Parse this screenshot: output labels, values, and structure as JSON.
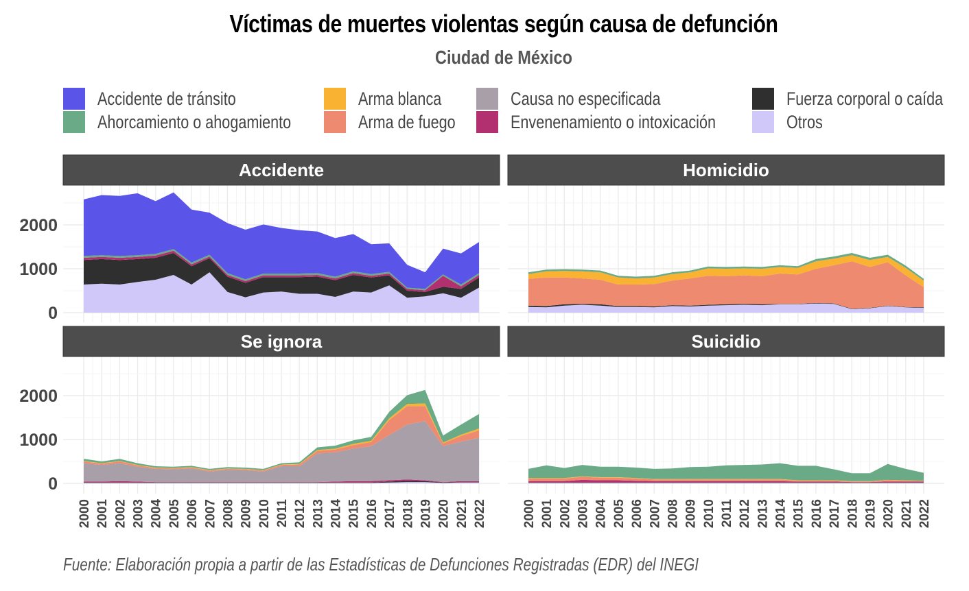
{
  "title": "Víctimas de muertes violentas según causa de defunción",
  "subtitle": "Ciudad de México",
  "caption": "Fuente: Elaboración propia a partir de las Estadísticas de Defunciones Registradas (EDR) del INEGI",
  "legend": [
    {
      "label": "Accidente de tránsito",
      "color": "#5A55E8"
    },
    {
      "label": "Ahorcamiento o ahogamiento",
      "color": "#6AAA86"
    },
    {
      "label": "Arma blanca",
      "color": "#F9B232"
    },
    {
      "label": "Arma de fuego",
      "color": "#EE8A70"
    },
    {
      "label": "Causa no especificada",
      "color": "#A99FA8"
    },
    {
      "label": "Envenenamiento o intoxicación",
      "color": "#B2306F"
    },
    {
      "label": "Fuerza corporal o caída",
      "color": "#2F2F2F"
    },
    {
      "label": "Otros",
      "color": "#D1C8FA"
    }
  ],
  "chart_data": {
    "type": "area",
    "stacked": true,
    "title": "Víctimas de muertes violentas según causa de defunción",
    "subtitle": "Ciudad de México",
    "xlabel": "",
    "ylabel": "",
    "x": [
      "2000",
      "2001",
      "2002",
      "2003",
      "2004",
      "2005",
      "2006",
      "2007",
      "2008",
      "2009",
      "2010",
      "2011",
      "2012",
      "2013",
      "2014",
      "2015",
      "2016",
      "2017",
      "2018",
      "2019",
      "2020",
      "2021",
      "2022"
    ],
    "ylim": [
      0,
      2900
    ],
    "yticks": [
      "0",
      "1000",
      "2000"
    ],
    "grid": true,
    "legend_position": "top",
    "stack_order_bottom_to_top": [
      "Otros",
      "Fuerza corporal o caída",
      "Envenenamiento o intoxicación",
      "Causa no especificada",
      "Arma de fuego",
      "Arma blanca",
      "Ahorcamiento o ahogamiento",
      "Accidente de tránsito"
    ],
    "panels": [
      {
        "name": "Accidente",
        "series": [
          {
            "name": "Otros",
            "values": [
              640,
              660,
              640,
              700,
              750,
              860,
              640,
              920,
              470,
              350,
              460,
              480,
              430,
              430,
              360,
              480,
              460,
              620,
              340,
              370,
              440,
              340,
              570
            ]
          },
          {
            "name": "Fuerza corporal o caída",
            "values": [
              560,
              560,
              560,
              520,
              500,
              500,
              420,
              320,
              350,
              330,
              350,
              330,
              380,
              390,
              380,
              380,
              340,
              230,
              160,
              100,
              150,
              200,
              230
            ]
          },
          {
            "name": "Envenenamiento o intoxicación",
            "values": [
              50,
              50,
              50,
              50,
              50,
              50,
              40,
              40,
              40,
              40,
              40,
              40,
              40,
              40,
              40,
              40,
              40,
              40,
              40,
              40,
              250,
              60,
              60
            ]
          },
          {
            "name": "Causa no especificada",
            "values": [
              0,
              0,
              0,
              0,
              0,
              0,
              0,
              0,
              0,
              0,
              0,
              0,
              0,
              0,
              0,
              0,
              0,
              0,
              0,
              0,
              0,
              0,
              0
            ]
          },
          {
            "name": "Arma de fuego",
            "values": [
              0,
              0,
              0,
              0,
              0,
              0,
              0,
              0,
              0,
              0,
              0,
              0,
              0,
              0,
              0,
              0,
              0,
              0,
              0,
              0,
              0,
              0,
              0
            ]
          },
          {
            "name": "Arma blanca",
            "values": [
              0,
              0,
              0,
              0,
              0,
              0,
              0,
              0,
              0,
              0,
              0,
              0,
              0,
              0,
              0,
              0,
              0,
              0,
              0,
              0,
              0,
              0,
              0
            ]
          },
          {
            "name": "Ahorcamiento o ahogamiento",
            "values": [
              40,
              40,
              40,
              40,
              40,
              40,
              40,
              40,
              40,
              40,
              40,
              40,
              40,
              40,
              40,
              40,
              40,
              40,
              30,
              30,
              30,
              40,
              40
            ]
          },
          {
            "name": "Accidente de tránsito",
            "values": [
              1290,
              1370,
              1370,
              1410,
              1200,
              1290,
              1210,
              960,
              1140,
              1130,
              1120,
              1040,
              990,
              950,
              880,
              850,
              680,
              650,
              520,
              380,
              590,
              710,
              710
            ]
          }
        ]
      },
      {
        "name": "Homicidio",
        "series": [
          {
            "name": "Otros",
            "values": [
              130,
              120,
              160,
              180,
              160,
              130,
              130,
              120,
              150,
              140,
              160,
              170,
              180,
              170,
              190,
              190,
              210,
              200,
              80,
              100,
              150,
              120,
              110
            ]
          },
          {
            "name": "Fuerza corporal o caída",
            "values": [
              30,
              30,
              30,
              20,
              30,
              20,
              20,
              20,
              20,
              20,
              20,
              20,
              20,
              20,
              10,
              10,
              10,
              10,
              10,
              10,
              10,
              10,
              10
            ]
          },
          {
            "name": "Envenenamiento o intoxicación",
            "values": [
              0,
              0,
              0,
              0,
              0,
              0,
              0,
              0,
              0,
              0,
              0,
              0,
              0,
              0,
              0,
              0,
              0,
              0,
              0,
              0,
              0,
              0,
              0
            ]
          },
          {
            "name": "Causa no especificada",
            "values": [
              0,
              0,
              0,
              0,
              0,
              0,
              0,
              0,
              0,
              0,
              0,
              0,
              0,
              0,
              0,
              0,
              0,
              0,
              0,
              0,
              0,
              0,
              0
            ]
          },
          {
            "name": "Arma de fuego",
            "values": [
              610,
              650,
              610,
              580,
              560,
              490,
              490,
              510,
              560,
              620,
              660,
              640,
              650,
              640,
              690,
              670,
              780,
              870,
              1080,
              930,
              990,
              720,
              460
            ]
          },
          {
            "name": "Arma blanca",
            "values": [
              110,
              140,
              150,
              160,
              170,
              160,
              140,
              150,
              150,
              140,
              170,
              170,
              160,
              170,
              150,
              150,
              170,
              150,
              140,
              160,
              120,
              170,
              150
            ]
          },
          {
            "name": "Ahorcamiento o ahogamiento",
            "values": [
              40,
              40,
              40,
              40,
              40,
              40,
              40,
              40,
              40,
              40,
              40,
              40,
              40,
              40,
              40,
              40,
              50,
              50,
              50,
              50,
              50,
              50,
              40
            ]
          },
          {
            "name": "Accidente de tránsito",
            "values": [
              0,
              0,
              0,
              0,
              0,
              0,
              0,
              0,
              0,
              0,
              0,
              0,
              0,
              0,
              0,
              0,
              0,
              0,
              0,
              0,
              0,
              0,
              0
            ]
          }
        ]
      },
      {
        "name": "Se ignora",
        "series": [
          {
            "name": "Otros",
            "values": [
              10,
              10,
              10,
              10,
              10,
              10,
              10,
              10,
              10,
              10,
              10,
              10,
              10,
              10,
              10,
              10,
              10,
              20,
              30,
              30,
              10,
              20,
              20
            ]
          },
          {
            "name": "Fuerza corporal o caída",
            "values": [
              10,
              10,
              10,
              10,
              10,
              10,
              10,
              10,
              10,
              10,
              10,
              10,
              10,
              10,
              10,
              10,
              10,
              20,
              30,
              20,
              10,
              10,
              10
            ]
          },
          {
            "name": "Envenenamiento o intoxicación",
            "values": [
              20,
              20,
              30,
              20,
              10,
              10,
              10,
              10,
              10,
              10,
              10,
              10,
              10,
              10,
              20,
              30,
              30,
              30,
              30,
              20,
              10,
              20,
              20
            ]
          },
          {
            "name": "Causa no especificada",
            "values": [
              420,
              380,
              410,
              340,
              300,
              290,
              310,
              240,
              280,
              270,
              240,
              360,
              360,
              650,
              670,
              740,
              800,
              1030,
              1250,
              1350,
              820,
              900,
              990
            ]
          },
          {
            "name": "Arma de fuego",
            "values": [
              40,
              30,
              40,
              30,
              20,
              20,
              20,
              20,
              20,
              20,
              20,
              30,
              40,
              60,
              60,
              80,
              90,
              340,
              420,
              340,
              60,
              130,
              170
            ]
          },
          {
            "name": "Arma blanca",
            "values": [
              10,
              10,
              10,
              10,
              10,
              10,
              10,
              10,
              10,
              10,
              10,
              10,
              10,
              20,
              20,
              30,
              30,
              40,
              50,
              60,
              20,
              30,
              40
            ]
          },
          {
            "name": "Ahorcamiento o ahogamiento",
            "values": [
              50,
              40,
              50,
              40,
              30,
              30,
              30,
              30,
              30,
              30,
              30,
              30,
              40,
              60,
              70,
              80,
              90,
              150,
              200,
              310,
              160,
              230,
              330
            ]
          },
          {
            "name": "Accidente de tránsito",
            "values": [
              0,
              0,
              0,
              0,
              0,
              0,
              0,
              0,
              0,
              0,
              0,
              0,
              0,
              0,
              0,
              0,
              0,
              0,
              0,
              0,
              0,
              0,
              0
            ]
          }
        ]
      },
      {
        "name": "Suicidio",
        "series": [
          {
            "name": "Otros",
            "values": [
              10,
              10,
              10,
              10,
              10,
              10,
              10,
              10,
              10,
              10,
              10,
              10,
              10,
              10,
              10,
              10,
              10,
              10,
              10,
              10,
              10,
              10,
              10
            ]
          },
          {
            "name": "Fuerza corporal o caída",
            "values": [
              10,
              10,
              10,
              10,
              10,
              10,
              10,
              10,
              10,
              10,
              10,
              10,
              10,
              10,
              10,
              10,
              10,
              10,
              10,
              10,
              10,
              10,
              10
            ]
          },
          {
            "name": "Envenenamiento o intoxicación",
            "values": [
              30,
              30,
              30,
              60,
              50,
              50,
              40,
              30,
              30,
              30,
              30,
              30,
              30,
              30,
              30,
              20,
              20,
              20,
              10,
              10,
              20,
              20,
              20
            ]
          },
          {
            "name": "Causa no especificada",
            "values": [
              0,
              0,
              0,
              0,
              0,
              0,
              0,
              0,
              0,
              0,
              0,
              0,
              0,
              0,
              0,
              0,
              0,
              0,
              0,
              0,
              0,
              0,
              0
            ]
          },
          {
            "name": "Arma de fuego",
            "values": [
              60,
              60,
              60,
              70,
              60,
              60,
              50,
              40,
              40,
              40,
              40,
              40,
              40,
              40,
              40,
              20,
              20,
              20,
              10,
              10,
              30,
              20,
              10
            ]
          },
          {
            "name": "Arma blanca",
            "values": [
              10,
              10,
              10,
              10,
              10,
              10,
              10,
              10,
              10,
              10,
              10,
              10,
              10,
              10,
              10,
              10,
              10,
              10,
              10,
              10,
              10,
              10,
              10
            ]
          },
          {
            "name": "Ahorcamiento o ahogamiento",
            "values": [
              210,
              290,
              230,
              260,
              240,
              240,
              240,
              230,
              240,
              270,
              280,
              310,
              320,
              330,
              360,
              330,
              330,
              250,
              180,
              180,
              360,
              260,
              180
            ]
          },
          {
            "name": "Accidente de tránsito",
            "values": [
              0,
              0,
              0,
              0,
              0,
              0,
              0,
              0,
              0,
              0,
              0,
              0,
              0,
              0,
              0,
              0,
              0,
              0,
              0,
              0,
              0,
              0,
              0
            ]
          }
        ]
      }
    ]
  }
}
